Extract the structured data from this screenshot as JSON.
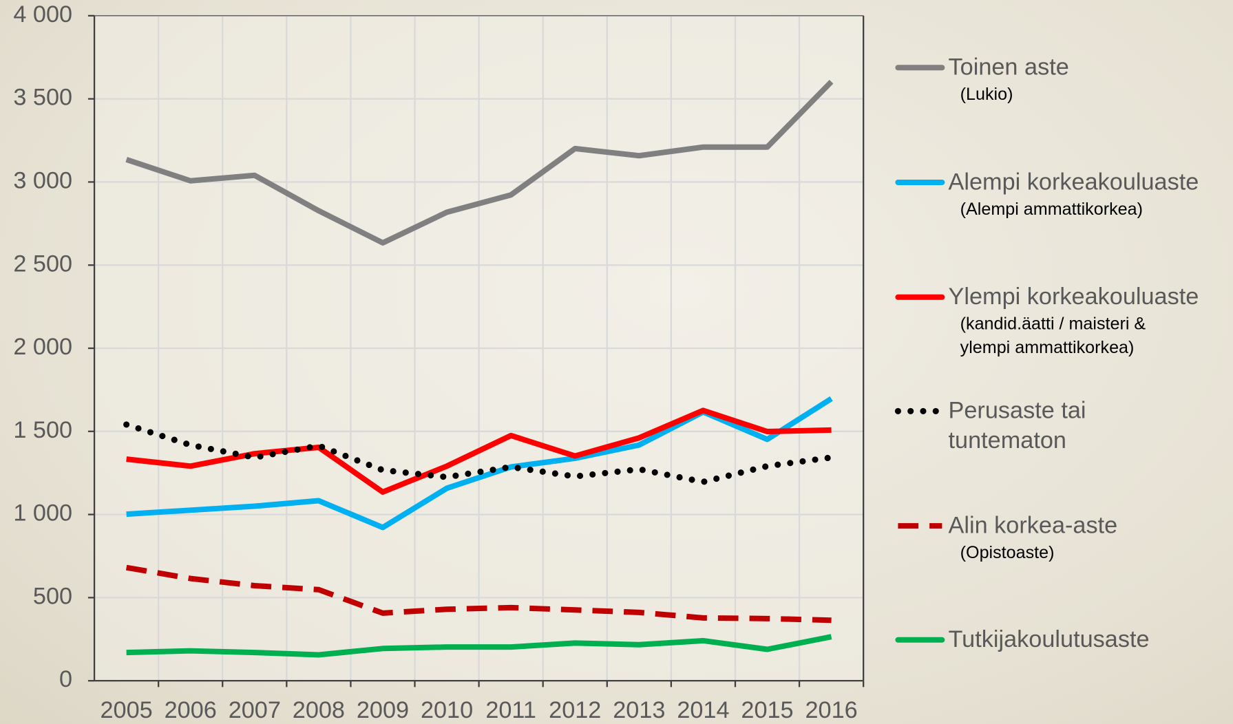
{
  "chart_data": {
    "type": "line",
    "categories": [
      "2005",
      "2006",
      "2007",
      "2008",
      "2009",
      "2010",
      "2011",
      "2012",
      "2013",
      "2014",
      "2015",
      "2016"
    ],
    "ylim": [
      0,
      4000
    ],
    "yticks": [
      0,
      500,
      {
        "value": 1000,
        "label": "1 000"
      },
      {
        "value": 1500,
        "label": "1 500"
      },
      {
        "value": 2000,
        "label": "2 000"
      },
      {
        "value": 2500,
        "label": "2 500"
      },
      {
        "value": 3000,
        "label": "3 000"
      },
      {
        "value": 3500,
        "label": "3 500"
      },
      {
        "value": 4000,
        "label": "4 000"
      }
    ],
    "grid": true,
    "legend": "right",
    "series": [
      {
        "name": "Toinen aste",
        "notes": [
          "(Lukio)"
        ],
        "color": "#808080",
        "dash": "solid",
        "values": [
          3135,
          3007,
          3040,
          2827,
          2634,
          2818,
          2922,
          3201,
          3158,
          3210,
          3210,
          3603
        ]
      },
      {
        "name": "Alempi korkeakouluaste",
        "notes": [
          "(Alempi ammattikorkea)"
        ],
        "color": "#00b0f0",
        "dash": "solid",
        "values": [
          1002,
          1026,
          1050,
          1083,
          922,
          1158,
          1286,
          1338,
          1418,
          1617,
          1452,
          1697
        ]
      },
      {
        "name": "Ylempi korkeakouluaste",
        "notes": [
          "(kandid.äatti / maisteri &",
          "ylempi ammattikorkea)"
        ],
        "color": "#ff0000",
        "dash": "solid",
        "values": [
          1333,
          1291,
          1366,
          1404,
          1135,
          1291,
          1475,
          1352,
          1461,
          1626,
          1499,
          1508
        ]
      },
      {
        "name": "Perusaste tai tuntematon",
        "notes": [],
        "color": "#000000",
        "dash": "dotted",
        "values": [
          1541,
          1418,
          1343,
          1414,
          1267,
          1225,
          1286,
          1229,
          1272,
          1196,
          1291,
          1343
        ]
      },
      {
        "name": "Alin korkea-aste",
        "notes": [
          "(Opistoaste)"
        ],
        "color": "#c00000",
        "dash": "dashed",
        "values": [
          681,
          615,
          572,
          548,
          407,
          430,
          440,
          426,
          411,
          378,
          374,
          364
        ]
      },
      {
        "name": "Tutkijakoulutusaste",
        "notes": [],
        "color": "#00b050",
        "dash": "solid",
        "values": [
          170,
          180,
          170,
          156,
          194,
          203,
          203,
          227,
          217,
          241,
          189,
          265
        ]
      }
    ]
  }
}
